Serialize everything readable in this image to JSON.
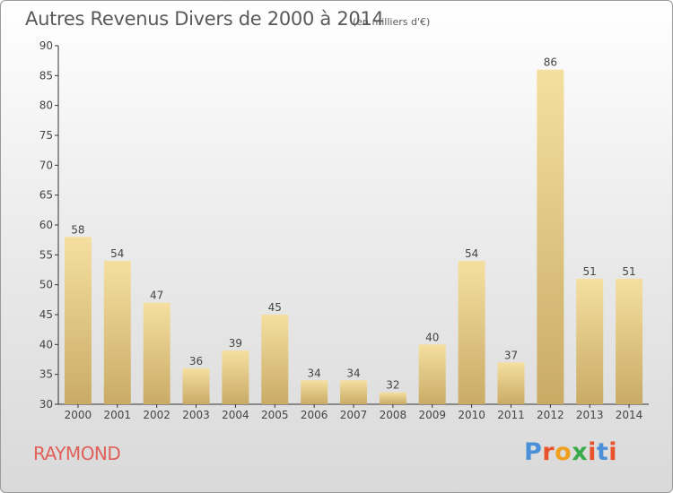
{
  "header": {
    "title": "Autres Revenus Divers de 2000 à 2014",
    "unit": "(en milliers d'€)"
  },
  "footer": {
    "town": "RAYMOND",
    "logo_text": "Proxiti",
    "logo_colors": [
      "#4a90d9",
      "#e8532b",
      "#f0a020",
      "#3aaa4a",
      "#e8532b",
      "#4a90d9",
      "#e8532b"
    ]
  },
  "colors": {
    "bar_light": "#f5dfa0",
    "bar_dark": "#c9ab66",
    "town": "#e0605a"
  },
  "chart_data": {
    "type": "bar",
    "title": "Autres Revenus Divers de 2000 à 2014",
    "subtitle": "(en milliers d'€)",
    "categories": [
      "2000",
      "2001",
      "2002",
      "2003",
      "2004",
      "2005",
      "2006",
      "2007",
      "2008",
      "2009",
      "2010",
      "2011",
      "2012",
      "2013",
      "2014"
    ],
    "values": [
      58,
      54,
      47,
      36,
      39,
      45,
      34,
      34,
      32,
      40,
      54,
      37,
      86,
      51,
      51
    ],
    "ylim": [
      30,
      90
    ],
    "yticks": [
      30,
      35,
      40,
      45,
      50,
      55,
      60,
      65,
      70,
      75,
      80,
      85,
      90
    ],
    "grid": false,
    "legend": "none"
  }
}
